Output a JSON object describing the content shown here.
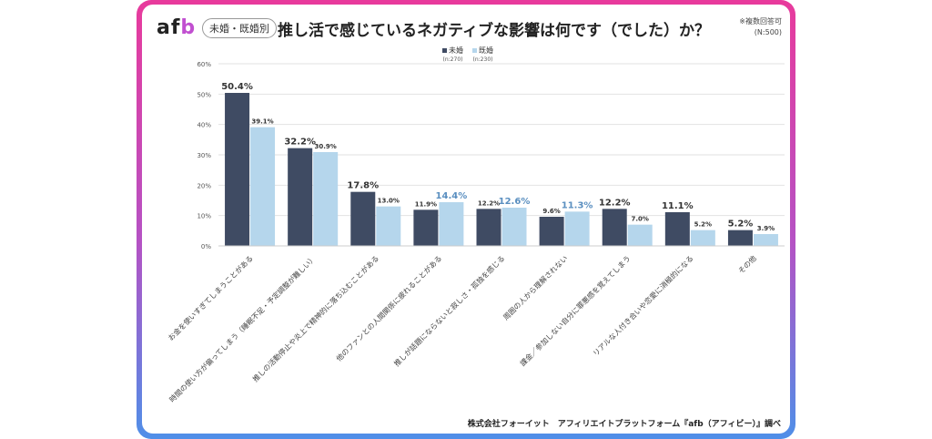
{
  "header": {
    "logo": "afb",
    "tag": "未婚・既婚別",
    "title": "推し活で感じているネガティブな影響は何です（でした）か？",
    "note1": "※複数回答可",
    "note2": "(N:500)"
  },
  "footer": "株式会社フォーイット　アフィリエイトプラットフォーム『afb（アフィビー）』調べ",
  "chart_data": {
    "type": "bar",
    "title": "推し活で感じているネガティブな影響は何です（でした）か？",
    "categories": [
      "お金を使いすぎてしまうことがある",
      "時間の使い方が偏ってしまう（睡眠不足・予定調整が難しい）",
      "推しの活動停止や炎上で精神的に落ち込むことがある",
      "他のファンとの人間関係に疲れることがある",
      "推しが話題にならないと寂しさ・孤独を感じる",
      "周囲の人から理解されない",
      "課金／参加しない自分に罪悪感を覚えてしまう",
      "リアルな人付き合いや恋愛に消極的になる",
      "その他"
    ],
    "series": [
      {
        "name": "未婚",
        "sub": "(n:270)",
        "color": "#3f4b63",
        "values": [
          50.4,
          32.2,
          17.8,
          11.9,
          12.2,
          9.6,
          12.2,
          11.1,
          5.2
        ]
      },
      {
        "name": "既婚",
        "sub": "(n:230)",
        "color": "#b5d6ec",
        "values": [
          39.1,
          30.9,
          13.0,
          14.4,
          12.6,
          11.3,
          7.0,
          5.2,
          3.9
        ]
      }
    ],
    "yticks": [
      "0%",
      "10%",
      "20%",
      "30%",
      "40%",
      "50%",
      "60%"
    ],
    "ylim": [
      0,
      60
    ],
    "grid": true,
    "legend": "top-center",
    "highlight_color": "#5a8fc0"
  }
}
